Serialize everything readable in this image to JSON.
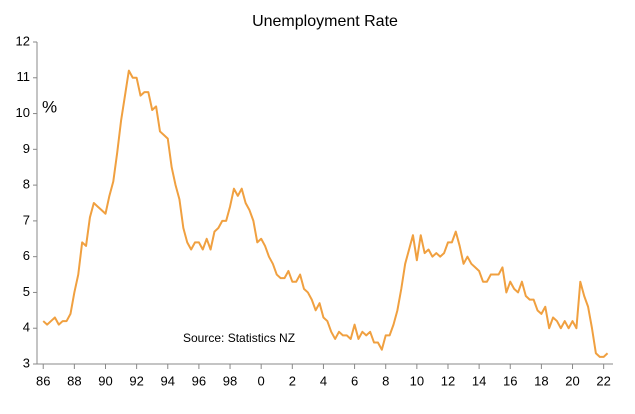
{
  "chart_data": {
    "type": "line",
    "title": "Unemployment Rate",
    "y_label": "%",
    "annotation": "Source: Statistics NZ",
    "x": [
      1986,
      1986.25,
      1986.5,
      1986.75,
      1987,
      1987.25,
      1987.5,
      1987.75,
      1988,
      1988.25,
      1988.5,
      1988.75,
      1989,
      1989.25,
      1989.5,
      1989.75,
      1990,
      1990.25,
      1990.5,
      1990.75,
      1991,
      1991.25,
      1991.5,
      1991.75,
      1992,
      1992.25,
      1992.5,
      1992.75,
      1993,
      1993.25,
      1993.5,
      1993.75,
      1994,
      1994.25,
      1994.5,
      1994.75,
      1995,
      1995.25,
      1995.5,
      1995.75,
      1996,
      1996.25,
      1996.5,
      1996.75,
      1997,
      1997.25,
      1997.5,
      1997.75,
      1998,
      1998.25,
      1998.5,
      1998.75,
      1999,
      1999.25,
      1999.5,
      1999.75,
      2000,
      2000.25,
      2000.5,
      2000.75,
      2001,
      2001.25,
      2001.5,
      2001.75,
      2002,
      2002.25,
      2002.5,
      2002.75,
      2003,
      2003.25,
      2003.5,
      2003.75,
      2004,
      2004.25,
      2004.5,
      2004.75,
      2005,
      2005.25,
      2005.5,
      2005.75,
      2006,
      2006.25,
      2006.5,
      2006.75,
      2007,
      2007.25,
      2007.5,
      2007.75,
      2008,
      2008.25,
      2008.5,
      2008.75,
      2009,
      2009.25,
      2009.5,
      2009.75,
      2010,
      2010.25,
      2010.5,
      2010.75,
      2011,
      2011.25,
      2011.5,
      2011.75,
      2012,
      2012.25,
      2012.5,
      2012.75,
      2013,
      2013.25,
      2013.5,
      2013.75,
      2014,
      2014.25,
      2014.5,
      2014.75,
      2015,
      2015.25,
      2015.5,
      2015.75,
      2016,
      2016.25,
      2016.5,
      2016.75,
      2017,
      2017.25,
      2017.5,
      2017.75,
      2018,
      2018.25,
      2018.5,
      2018.75,
      2019,
      2019.25,
      2019.5,
      2019.75,
      2020,
      2020.25,
      2020.5,
      2020.75,
      2021,
      2021.25,
      2021.5,
      2021.75,
      2022,
      2022.25
    ],
    "series": [
      {
        "color": "#f0a040",
        "values": [
          4.2,
          4.1,
          4.2,
          4.3,
          4.1,
          4.2,
          4.2,
          4.4,
          5.0,
          5.5,
          6.4,
          6.3,
          7.1,
          7.5,
          7.4,
          7.3,
          7.2,
          7.7,
          8.1,
          8.9,
          9.8,
          10.5,
          11.2,
          11.0,
          11.0,
          10.5,
          10.6,
          10.6,
          10.1,
          10.2,
          9.5,
          9.4,
          9.3,
          8.5,
          8.0,
          7.6,
          6.8,
          6.4,
          6.2,
          6.4,
          6.4,
          6.2,
          6.5,
          6.2,
          6.7,
          6.8,
          7.0,
          7.0,
          7.4,
          7.9,
          7.7,
          7.9,
          7.5,
          7.3,
          7.0,
          6.4,
          6.5,
          6.3,
          6.0,
          5.8,
          5.5,
          5.4,
          5.4,
          5.6,
          5.3,
          5.3,
          5.5,
          5.1,
          5.0,
          4.8,
          4.5,
          4.7,
          4.3,
          4.2,
          3.9,
          3.7,
          3.9,
          3.8,
          3.8,
          3.7,
          4.1,
          3.7,
          3.9,
          3.8,
          3.9,
          3.6,
          3.6,
          3.4,
          3.8,
          3.8,
          4.1,
          4.5,
          5.1,
          5.8,
          6.2,
          6.6,
          5.9,
          6.6,
          6.1,
          6.2,
          6.0,
          6.1,
          6.0,
          6.1,
          6.4,
          6.4,
          6.7,
          6.3,
          5.8,
          6.0,
          5.8,
          5.7,
          5.6,
          5.3,
          5.3,
          5.5,
          5.5,
          5.5,
          5.7,
          5.0,
          5.3,
          5.1,
          5.0,
          5.3,
          4.9,
          4.8,
          4.8,
          4.5,
          4.4,
          4.6,
          4.0,
          4.3,
          4.2,
          4.0,
          4.2,
          4.0,
          4.2,
          4.0,
          5.3,
          4.9,
          4.6,
          4.0,
          3.3,
          3.2,
          3.2,
          3.3
        ]
      }
    ],
    "xlim": [
      1985.6,
      2022.6
    ],
    "xticks": [
      {
        "value": 1986,
        "label": "86"
      },
      {
        "value": 1988,
        "label": "88"
      },
      {
        "value": 1990,
        "label": "90"
      },
      {
        "value": 1992,
        "label": "92"
      },
      {
        "value": 1994,
        "label": "94"
      },
      {
        "value": 1996,
        "label": "96"
      },
      {
        "value": 1998,
        "label": "98"
      },
      {
        "value": 2000,
        "label": "0"
      },
      {
        "value": 2002,
        "label": "2"
      },
      {
        "value": 2004,
        "label": "4"
      },
      {
        "value": 2006,
        "label": "6"
      },
      {
        "value": 2008,
        "label": "8"
      },
      {
        "value": 2010,
        "label": "10"
      },
      {
        "value": 2012,
        "label": "12"
      },
      {
        "value": 2014,
        "label": "14"
      },
      {
        "value": 2016,
        "label": "16"
      },
      {
        "value": 2018,
        "label": "18"
      },
      {
        "value": 2020,
        "label": "20"
      },
      {
        "value": 2022,
        "label": "22"
      }
    ],
    "ylim": [
      3,
      12
    ],
    "yticks": [
      3,
      4,
      5,
      6,
      7,
      8,
      9,
      10,
      11,
      12
    ],
    "grid": false
  }
}
